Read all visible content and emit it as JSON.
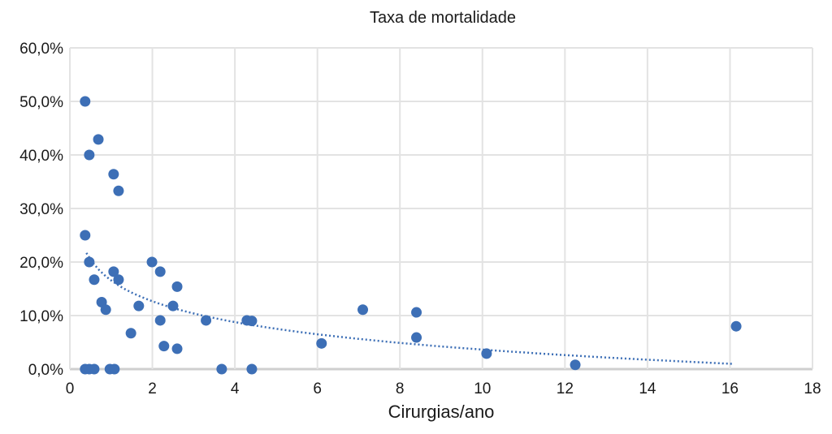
{
  "chart_data": {
    "type": "scatter",
    "title": "Taxa de mortalidade",
    "xlabel": "Cirurgias/ano",
    "ylabel": "",
    "xlim": [
      0,
      18
    ],
    "ylim": [
      0,
      60
    ],
    "xticks": [
      0,
      2,
      4,
      6,
      8,
      10,
      12,
      14,
      16,
      18
    ],
    "xtick_labels": [
      "0",
      "2",
      "4",
      "6",
      "8",
      "10",
      "12",
      "14",
      "16",
      "18"
    ],
    "yticks": [
      0,
      10,
      20,
      30,
      40,
      50,
      60
    ],
    "ytick_labels": [
      "0,0%",
      "10,0%",
      "20,0%",
      "30,0%",
      "40,0%",
      "50,0%",
      "60,0%"
    ],
    "grid": true,
    "legend": "none",
    "point_color": "#3d6fb6",
    "trendline": {
      "type": "logarithmic",
      "style": "dotted",
      "a": 16.56,
      "b": -5.61,
      "x_range": [
        0.4,
        16.1
      ],
      "color": "#3d6fb6"
    },
    "points": [
      {
        "x": 0.37,
        "y": 50.0
      },
      {
        "x": 0.69,
        "y": 42.9
      },
      {
        "x": 0.47,
        "y": 40.0
      },
      {
        "x": 1.06,
        "y": 36.4
      },
      {
        "x": 1.18,
        "y": 33.3
      },
      {
        "x": 0.37,
        "y": 25.0
      },
      {
        "x": 0.47,
        "y": 20.0
      },
      {
        "x": 1.06,
        "y": 18.2
      },
      {
        "x": 1.99,
        "y": 20.0
      },
      {
        "x": 2.19,
        "y": 18.2
      },
      {
        "x": 0.59,
        "y": 16.7
      },
      {
        "x": 1.18,
        "y": 16.7
      },
      {
        "x": 2.6,
        "y": 15.4
      },
      {
        "x": 0.77,
        "y": 12.5
      },
      {
        "x": 0.87,
        "y": 11.1
      },
      {
        "x": 1.67,
        "y": 11.8
      },
      {
        "x": 2.5,
        "y": 11.8
      },
      {
        "x": 7.1,
        "y": 11.1
      },
      {
        "x": 8.4,
        "y": 10.6
      },
      {
        "x": 2.19,
        "y": 9.1
      },
      {
        "x": 3.3,
        "y": 9.1
      },
      {
        "x": 4.29,
        "y": 9.1
      },
      {
        "x": 4.41,
        "y": 9.0
      },
      {
        "x": 1.48,
        "y": 6.7
      },
      {
        "x": 8.4,
        "y": 5.9
      },
      {
        "x": 2.28,
        "y": 4.3
      },
      {
        "x": 2.6,
        "y": 3.8
      },
      {
        "x": 6.1,
        "y": 4.8
      },
      {
        "x": 10.1,
        "y": 2.9
      },
      {
        "x": 12.25,
        "y": 0.8
      },
      {
        "x": 16.15,
        "y": 8.0
      },
      {
        "x": 0.37,
        "y": 0
      },
      {
        "x": 0.47,
        "y": 0
      },
      {
        "x": 0.59,
        "y": 0
      },
      {
        "x": 0.97,
        "y": 0
      },
      {
        "x": 1.08,
        "y": 0
      },
      {
        "x": 3.68,
        "y": 0
      },
      {
        "x": 4.41,
        "y": 0
      }
    ]
  }
}
